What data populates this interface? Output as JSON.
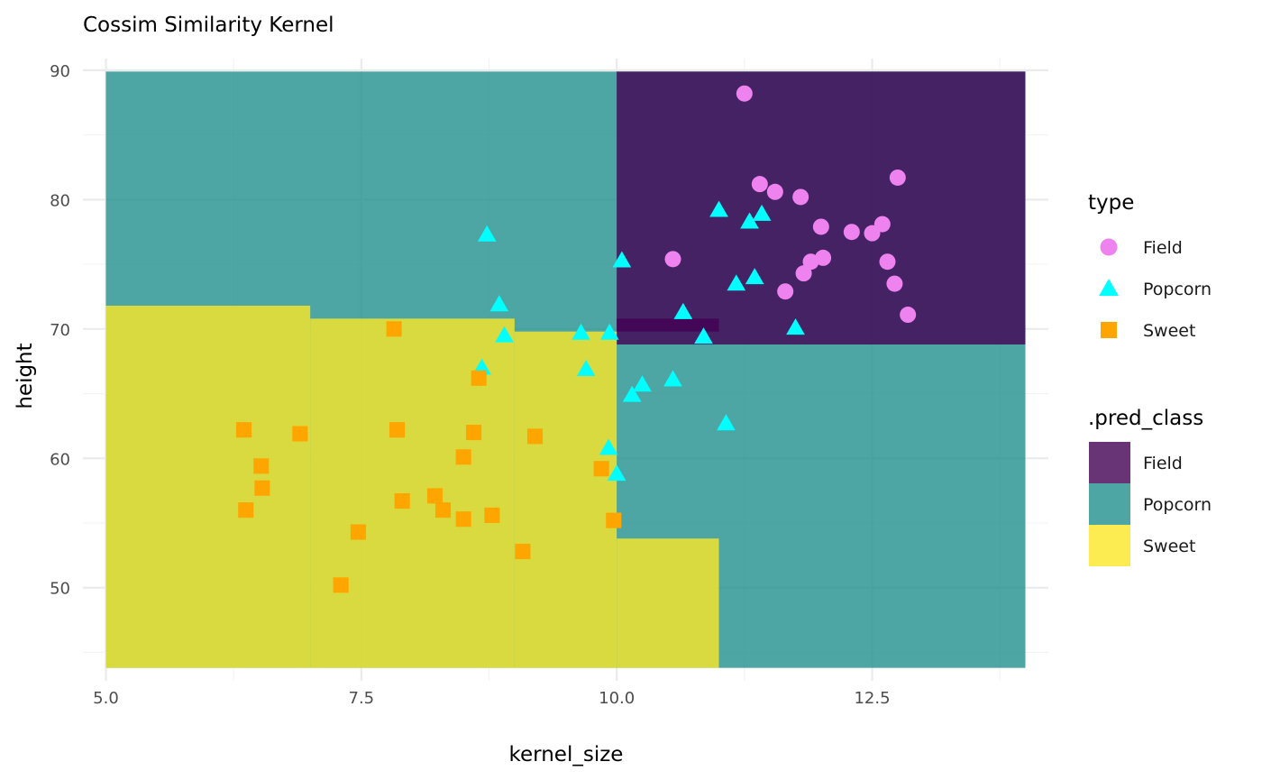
{
  "chart_data": {
    "type": "scatter",
    "title": "Cossim Similarity Kernel",
    "xlabel": "kernel_size",
    "ylabel": "height",
    "xlim": [
      4.775,
      14.225
    ],
    "ylim": [
      42.8,
      90.9
    ],
    "x_ticks": [
      5.0,
      7.5,
      10.0,
      12.5
    ],
    "x_tick_labels": [
      "5.0",
      "7.5",
      "10.0",
      "12.5"
    ],
    "x_minor_ticks": [
      6.25,
      8.75,
      11.25,
      13.75
    ],
    "y_ticks": [
      50,
      60,
      70,
      80,
      90
    ],
    "y_tick_labels": [
      "50",
      "60",
      "70",
      "80",
      "90"
    ],
    "y_minor_ticks": [
      45,
      55,
      65,
      75,
      85
    ],
    "grid": true,
    "legend_placement": "right",
    "points_legend": {
      "title": "type",
      "entries": [
        {
          "label": "Field",
          "shape": "circle",
          "color": "#EE82EE"
        },
        {
          "label": "Popcorn",
          "shape": "triangle",
          "color": "#00FFFF"
        },
        {
          "label": "Sweet",
          "shape": "square",
          "color": "#FFA500"
        }
      ]
    },
    "regions_legend": {
      "title": ".pred_class",
      "entries": [
        {
          "label": "Field",
          "color": "#440154"
        },
        {
          "label": "Popcorn",
          "color": "#21908C"
        },
        {
          "label": "Sweet",
          "color": "#FDE725"
        }
      ]
    },
    "region_opacity": 0.8,
    "regions": [
      {
        "class": "Popcorn",
        "x": [
          5.0,
          14.0
        ],
        "y": [
          43.8,
          89.9
        ]
      },
      {
        "class": "Field",
        "x": [
          10.0,
          14.0
        ],
        "y": [
          68.8,
          89.9
        ]
      },
      {
        "class": "Sweet",
        "x": [
          5.0,
          7.0
        ],
        "y": [
          43.8,
          71.8
        ]
      },
      {
        "class": "Sweet",
        "x": [
          7.0,
          9.0
        ],
        "y": [
          43.8,
          70.8
        ]
      },
      {
        "class": "Sweet",
        "x": [
          9.0,
          10.0
        ],
        "y": [
          43.8,
          69.8
        ]
      },
      {
        "class": "Sweet",
        "x": [
          10.0,
          11.0
        ],
        "y": [
          43.8,
          53.8
        ]
      },
      {
        "class": "Field",
        "x": [
          10.0,
          11.0
        ],
        "y": [
          69.8,
          70.8
        ]
      }
    ],
    "series": [
      {
        "name": "Field",
        "points": [
          [
            11.25,
            88.2
          ],
          [
            11.4,
            81.2
          ],
          [
            11.55,
            80.6
          ],
          [
            11.8,
            80.2
          ],
          [
            12.75,
            81.7
          ],
          [
            12.0,
            77.9
          ],
          [
            12.3,
            77.5
          ],
          [
            12.5,
            77.4
          ],
          [
            12.6,
            78.1
          ],
          [
            10.55,
            75.4
          ],
          [
            11.9,
            75.2
          ],
          [
            12.02,
            75.5
          ],
          [
            11.83,
            74.3
          ],
          [
            12.65,
            75.2
          ],
          [
            12.72,
            73.5
          ],
          [
            11.65,
            72.9
          ],
          [
            12.85,
            71.1
          ]
        ]
      },
      {
        "name": "Popcorn",
        "points": [
          [
            8.73,
            77.3
          ],
          [
            11.0,
            79.2
          ],
          [
            11.3,
            78.3
          ],
          [
            11.42,
            78.9
          ],
          [
            10.05,
            75.3
          ],
          [
            11.17,
            73.5
          ],
          [
            11.35,
            74.0
          ],
          [
            8.85,
            71.9
          ],
          [
            10.65,
            71.3
          ],
          [
            11.75,
            70.1
          ],
          [
            8.9,
            69.5
          ],
          [
            9.65,
            69.7
          ],
          [
            9.93,
            69.7
          ],
          [
            10.85,
            69.4
          ],
          [
            8.68,
            67.0
          ],
          [
            9.7,
            66.9
          ],
          [
            10.25,
            65.7
          ],
          [
            10.55,
            66.1
          ],
          [
            10.15,
            64.9
          ],
          [
            11.07,
            62.7
          ],
          [
            9.92,
            60.8
          ],
          [
            10.0,
            58.8
          ]
        ]
      },
      {
        "name": "Sweet",
        "points": [
          [
            7.82,
            70.0
          ],
          [
            8.65,
            66.2
          ],
          [
            6.35,
            62.2
          ],
          [
            6.9,
            61.9
          ],
          [
            7.85,
            62.2
          ],
          [
            8.6,
            62.0
          ],
          [
            9.2,
            61.7
          ],
          [
            6.52,
            59.4
          ],
          [
            8.5,
            60.1
          ],
          [
            9.85,
            59.2
          ],
          [
            6.53,
            57.7
          ],
          [
            6.37,
            56.0
          ],
          [
            7.9,
            56.7
          ],
          [
            8.22,
            57.1
          ],
          [
            8.3,
            56.0
          ],
          [
            8.5,
            55.3
          ],
          [
            8.78,
            55.6
          ],
          [
            9.97,
            55.2
          ],
          [
            7.47,
            54.3
          ],
          [
            9.08,
            52.8
          ],
          [
            7.3,
            50.2
          ]
        ]
      }
    ]
  }
}
